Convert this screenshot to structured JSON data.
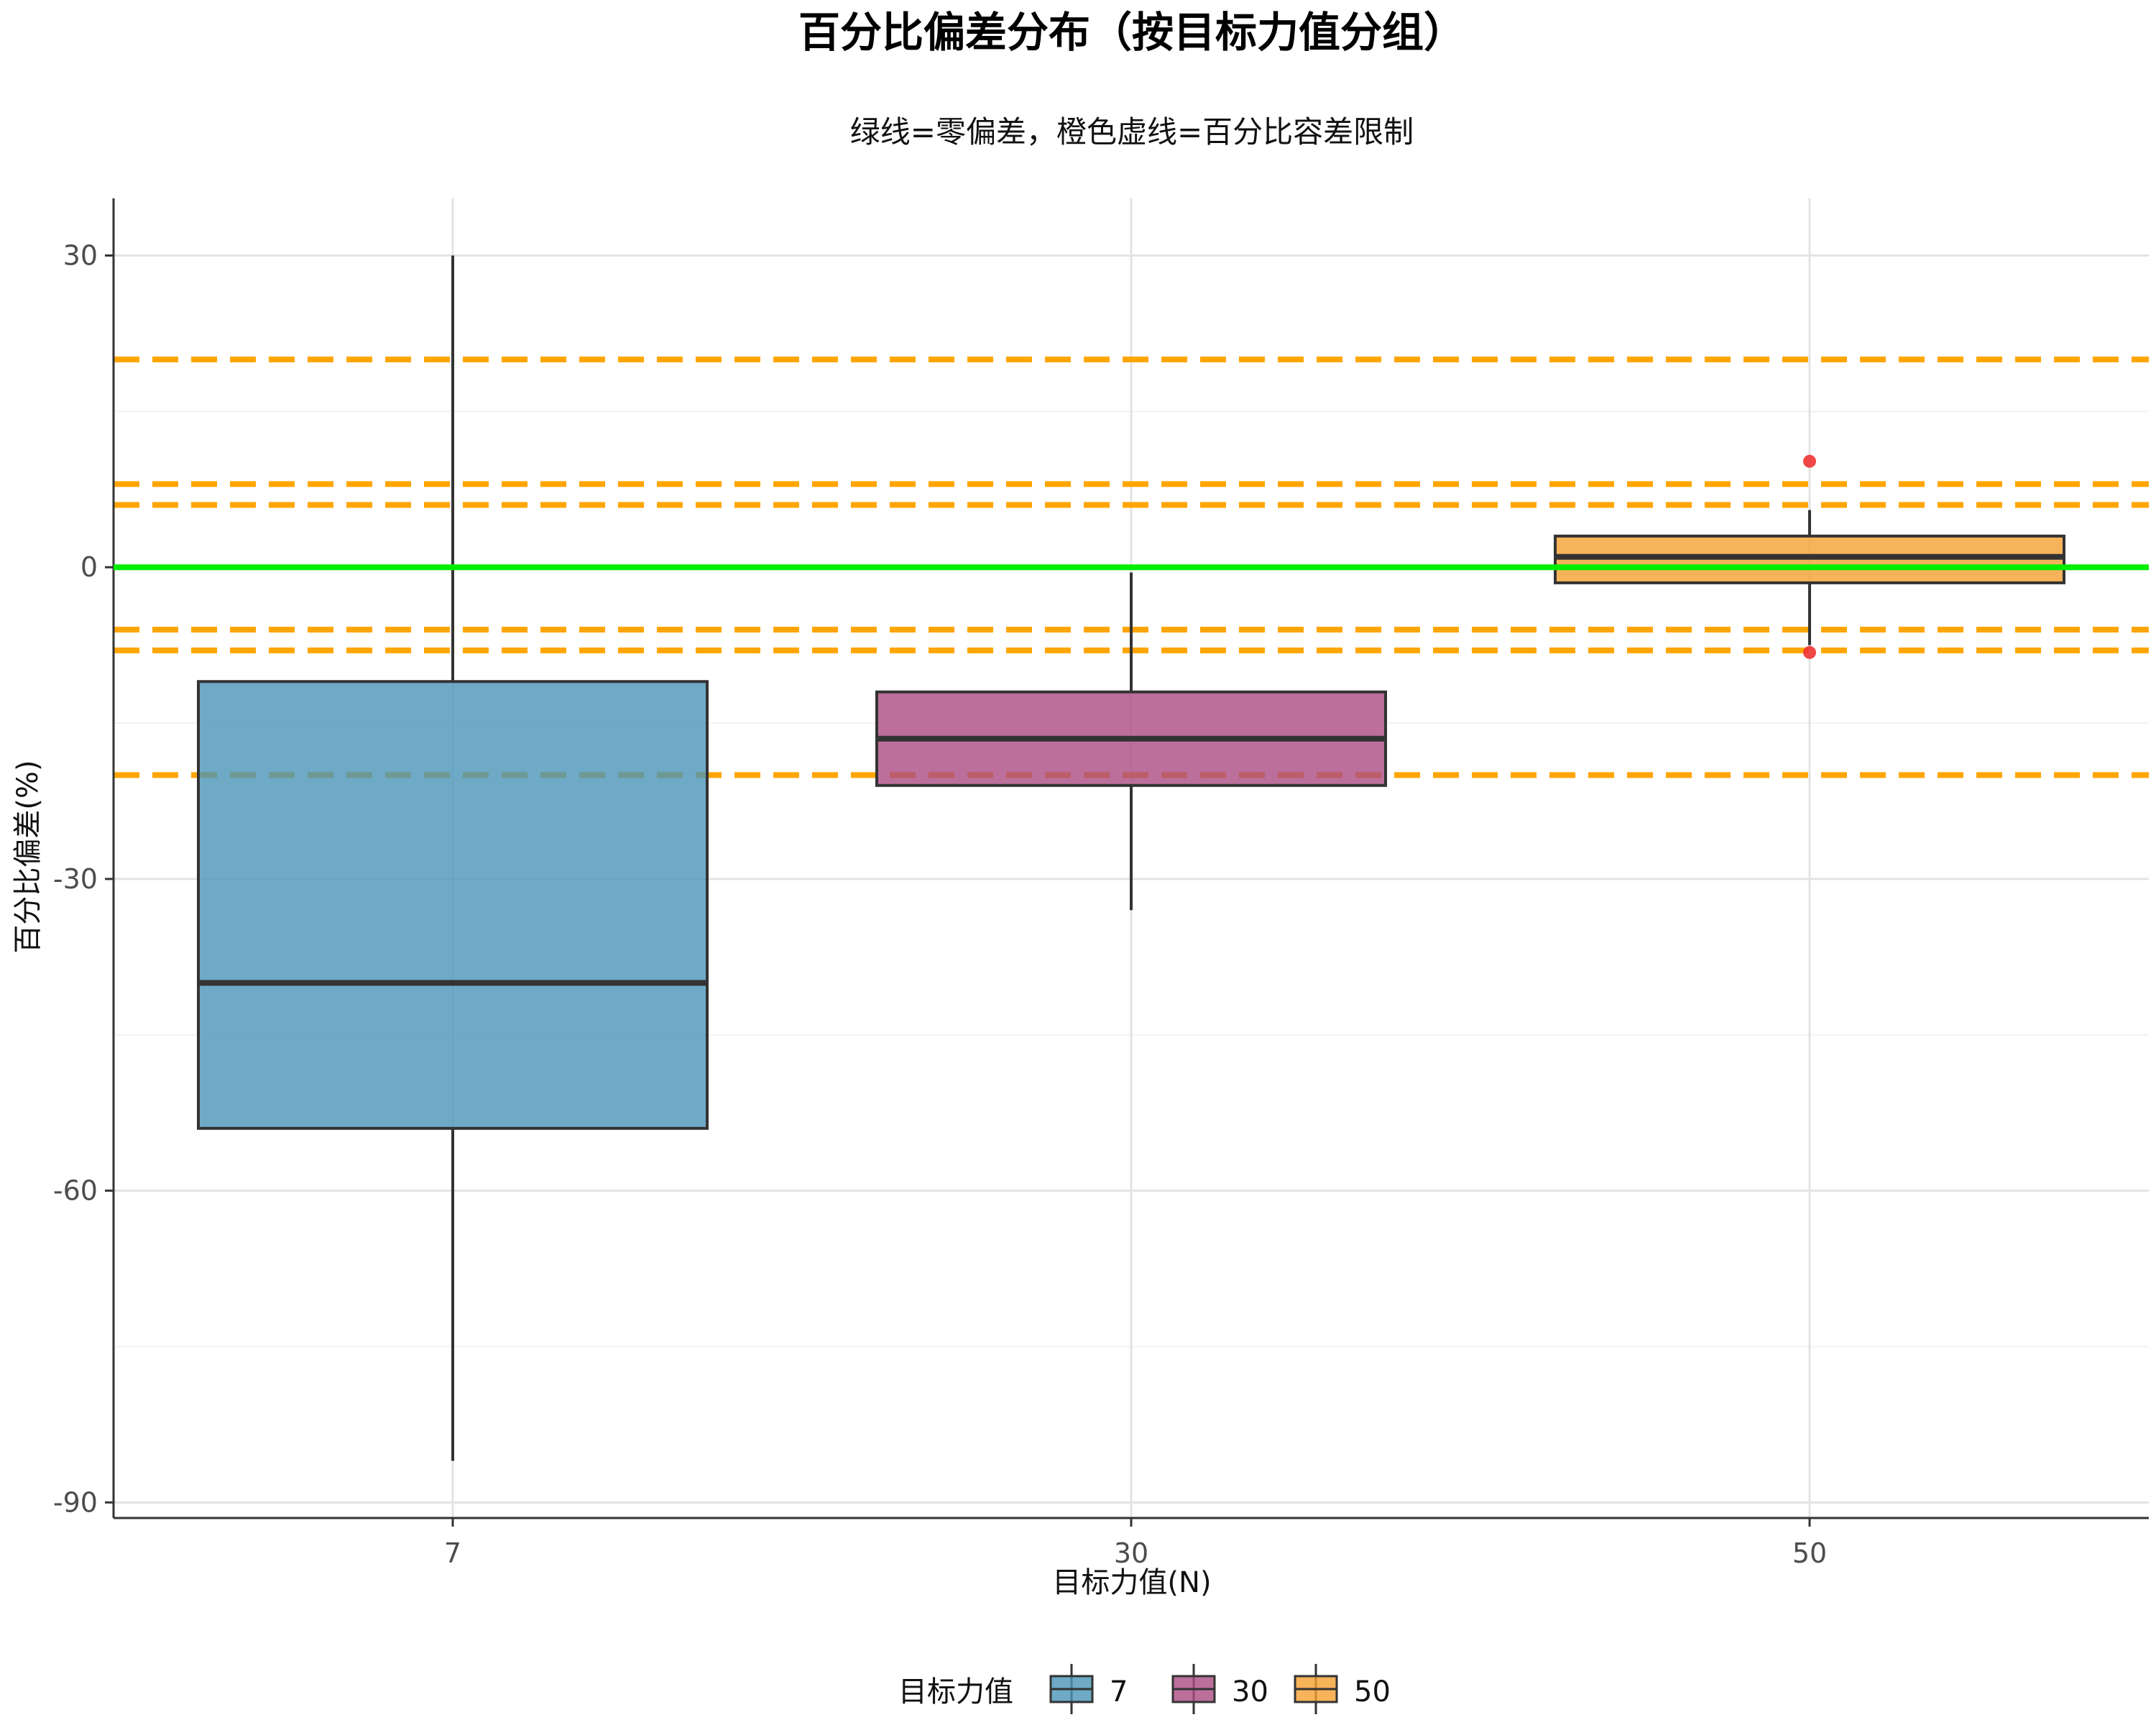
{
  "chart_data": {
    "type": "box",
    "title": "百分比偏差分布（按目标力值分组）",
    "subtitle": "绿线=零偏差，橙色虚线=百分比容差限制",
    "xlabel": "目标力值(N)",
    "ylabel": "百分比偏差(%)",
    "categories": [
      "7",
      "30",
      "50"
    ],
    "ylim": [
      -91.5,
      35.5
    ],
    "y_ticks": [
      30,
      0,
      -30,
      -60,
      -90
    ],
    "y_tick_labels": [
      "30",
      "0",
      "-30",
      "-60",
      "-90"
    ],
    "grid": true,
    "series": [
      {
        "name": "7",
        "color": "#4A95B8",
        "min": -86,
        "q1": -54,
        "median": -40,
        "q3": -11,
        "max": 30,
        "outliers": []
      },
      {
        "name": "30",
        "color": "#AB4B82",
        "min": -33,
        "q1": -21,
        "median": -16.5,
        "q3": -12,
        "max": -0.5,
        "outliers": []
      },
      {
        "name": "50",
        "color": "#F5A030",
        "min": -7.5,
        "q1": -1.5,
        "median": 1,
        "q3": 3,
        "max": 5.5,
        "outliers": [
          10.2,
          -8.2
        ],
        "outlier_color": "#EE3333"
      }
    ],
    "reference_lines": [
      {
        "y": 0,
        "color": "#00EE00",
        "style": "solid"
      },
      {
        "y": 20,
        "color": "#FFA500",
        "style": "dashed"
      },
      {
        "y": 8,
        "color": "#FFA500",
        "style": "dashed"
      },
      {
        "y": 6,
        "color": "#FFA500",
        "style": "dashed"
      },
      {
        "y": -6,
        "color": "#FFA500",
        "style": "dashed"
      },
      {
        "y": -8,
        "color": "#FFA500",
        "style": "dashed"
      },
      {
        "y": -20,
        "color": "#FFA500",
        "style": "dashed"
      }
    ],
    "legend": {
      "title": "目标力值",
      "position": "bottom",
      "items": [
        "7",
        "30",
        "50"
      ]
    }
  }
}
